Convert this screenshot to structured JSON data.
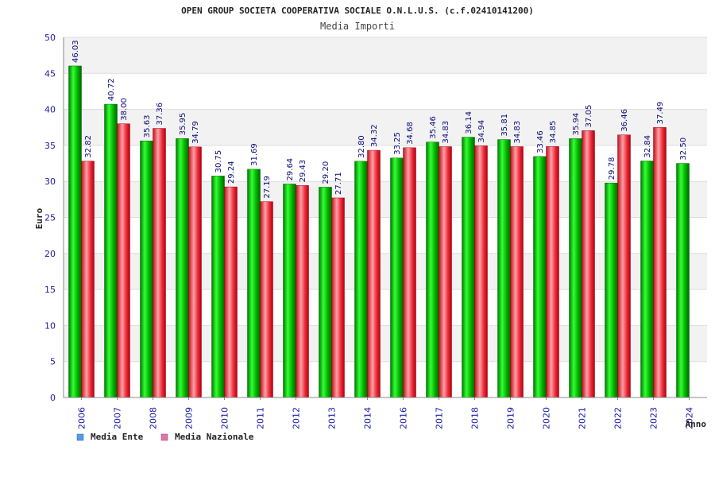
{
  "chart_data": {
    "type": "bar",
    "title": "OPEN GROUP SOCIETA COOPERATIVA SOCIALE O.N.L.U.S. (c.f.02410141200)",
    "subtitle": "Media Importi",
    "xlabel": "Anno",
    "ylabel": "Euro",
    "ylim": [
      0,
      50
    ],
    "yticks": [
      0,
      5,
      10,
      15,
      20,
      25,
      30,
      35,
      40,
      45,
      50
    ],
    "categories": [
      "2006",
      "2007",
      "2008",
      "2009",
      "2010",
      "2011",
      "2012",
      "2013",
      "2014",
      "2016",
      "2017",
      "2018",
      "2019",
      "2020",
      "2021",
      "2022",
      "2023",
      "2024"
    ],
    "series": [
      {
        "name": "Media Ente",
        "color": "#00bb00",
        "legend_color": "#5599ee",
        "values": [
          46.03,
          40.72,
          35.63,
          35.95,
          30.75,
          31.69,
          29.64,
          29.2,
          32.8,
          33.25,
          35.46,
          36.14,
          35.81,
          33.46,
          35.94,
          29.78,
          32.84,
          32.5
        ],
        "labels": [
          "46.03",
          "40.72",
          "35.63",
          "35.95",
          "30.75",
          "31.69",
          "29.64",
          "29.20",
          "32.80",
          "33.25",
          "35.46",
          "36.14",
          "35.81",
          "33.46",
          "35.94",
          "29.78",
          "32.84",
          "32.50"
        ]
      },
      {
        "name": "Media Nazionale",
        "color": "#ee2233",
        "legend_color": "#dd77aa",
        "values": [
          32.82,
          38.0,
          37.36,
          34.79,
          29.24,
          27.19,
          29.43,
          27.71,
          34.32,
          34.68,
          34.83,
          34.94,
          34.83,
          34.85,
          37.05,
          36.46,
          37.49,
          null
        ],
        "labels": [
          "32.82",
          "38.00",
          "37.36",
          "34.79",
          "29.24",
          "27.19",
          "29.43",
          "27.71",
          "34.32",
          "34.68",
          "34.83",
          "34.94",
          "34.83",
          "34.85",
          "37.05",
          "36.46",
          "37.49",
          null
        ]
      }
    ],
    "grid": true,
    "legend_position": "bottom-left"
  }
}
